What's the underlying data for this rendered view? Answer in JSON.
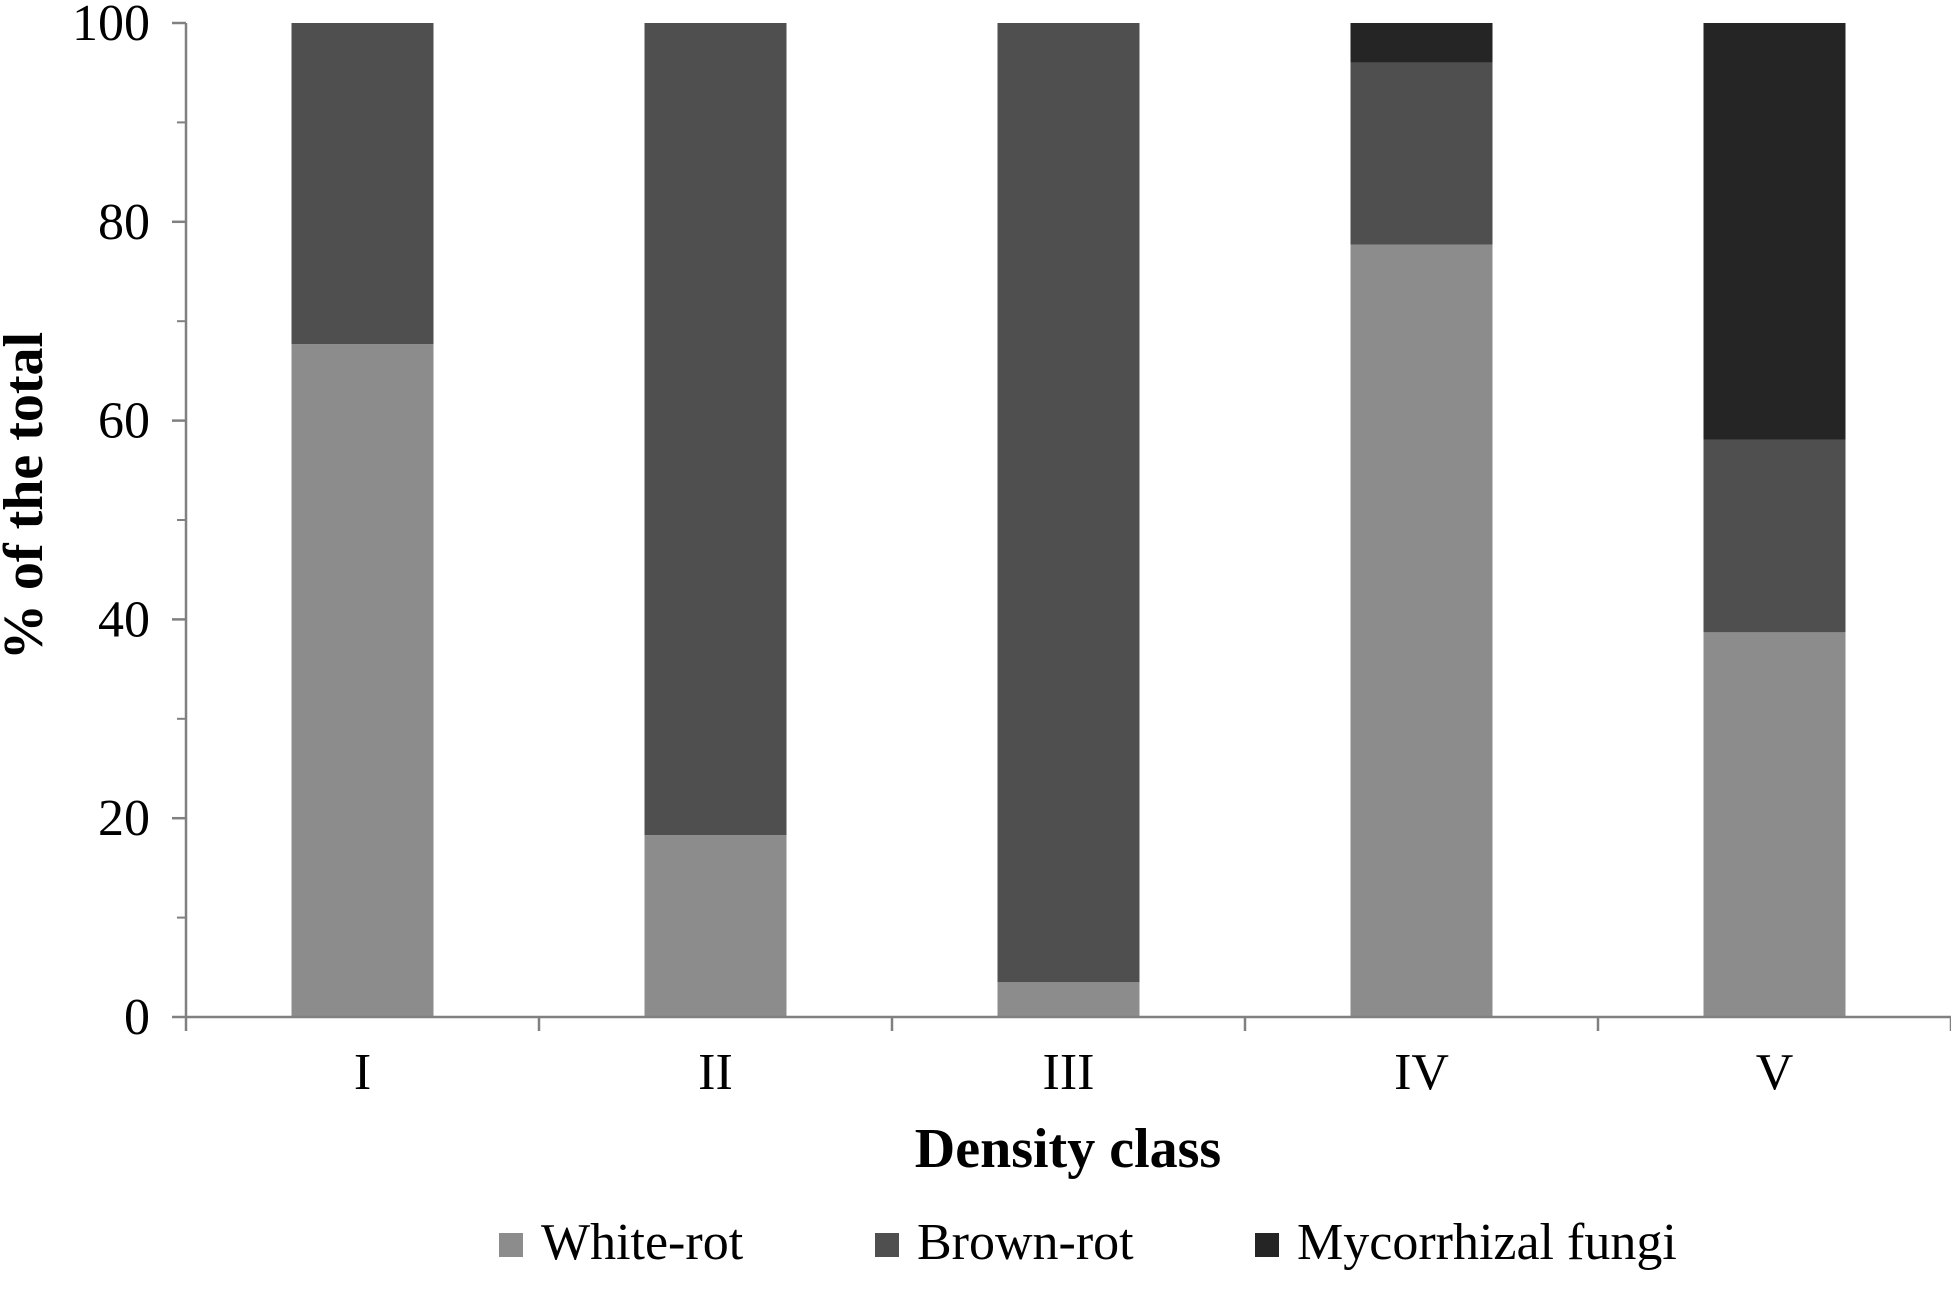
{
  "chart_data": {
    "type": "bar",
    "stacked": true,
    "title": "",
    "xlabel": "Density class",
    "ylabel": "% of the total",
    "categories": [
      "I",
      "II",
      "III",
      "IV",
      "V"
    ],
    "ylim": [
      0,
      100
    ],
    "yticks": [
      "0",
      "20",
      "40",
      "60",
      "80",
      "100"
    ],
    "grid": false,
    "legend_position": "bottom",
    "series": [
      {
        "name": "White-rot",
        "color": "#8c8c8c",
        "values": [
          67.7,
          18.3,
          3.5,
          77.7,
          38.7
        ]
      },
      {
        "name": "Brown-rot",
        "color": "#4f4f4f",
        "values": [
          32.3,
          81.7,
          96.5,
          18.3,
          19.4
        ]
      },
      {
        "name": "Mycorrhizal fungi",
        "color": "#252525",
        "values": [
          0,
          0,
          0,
          4.0,
          41.9
        ]
      }
    ]
  }
}
